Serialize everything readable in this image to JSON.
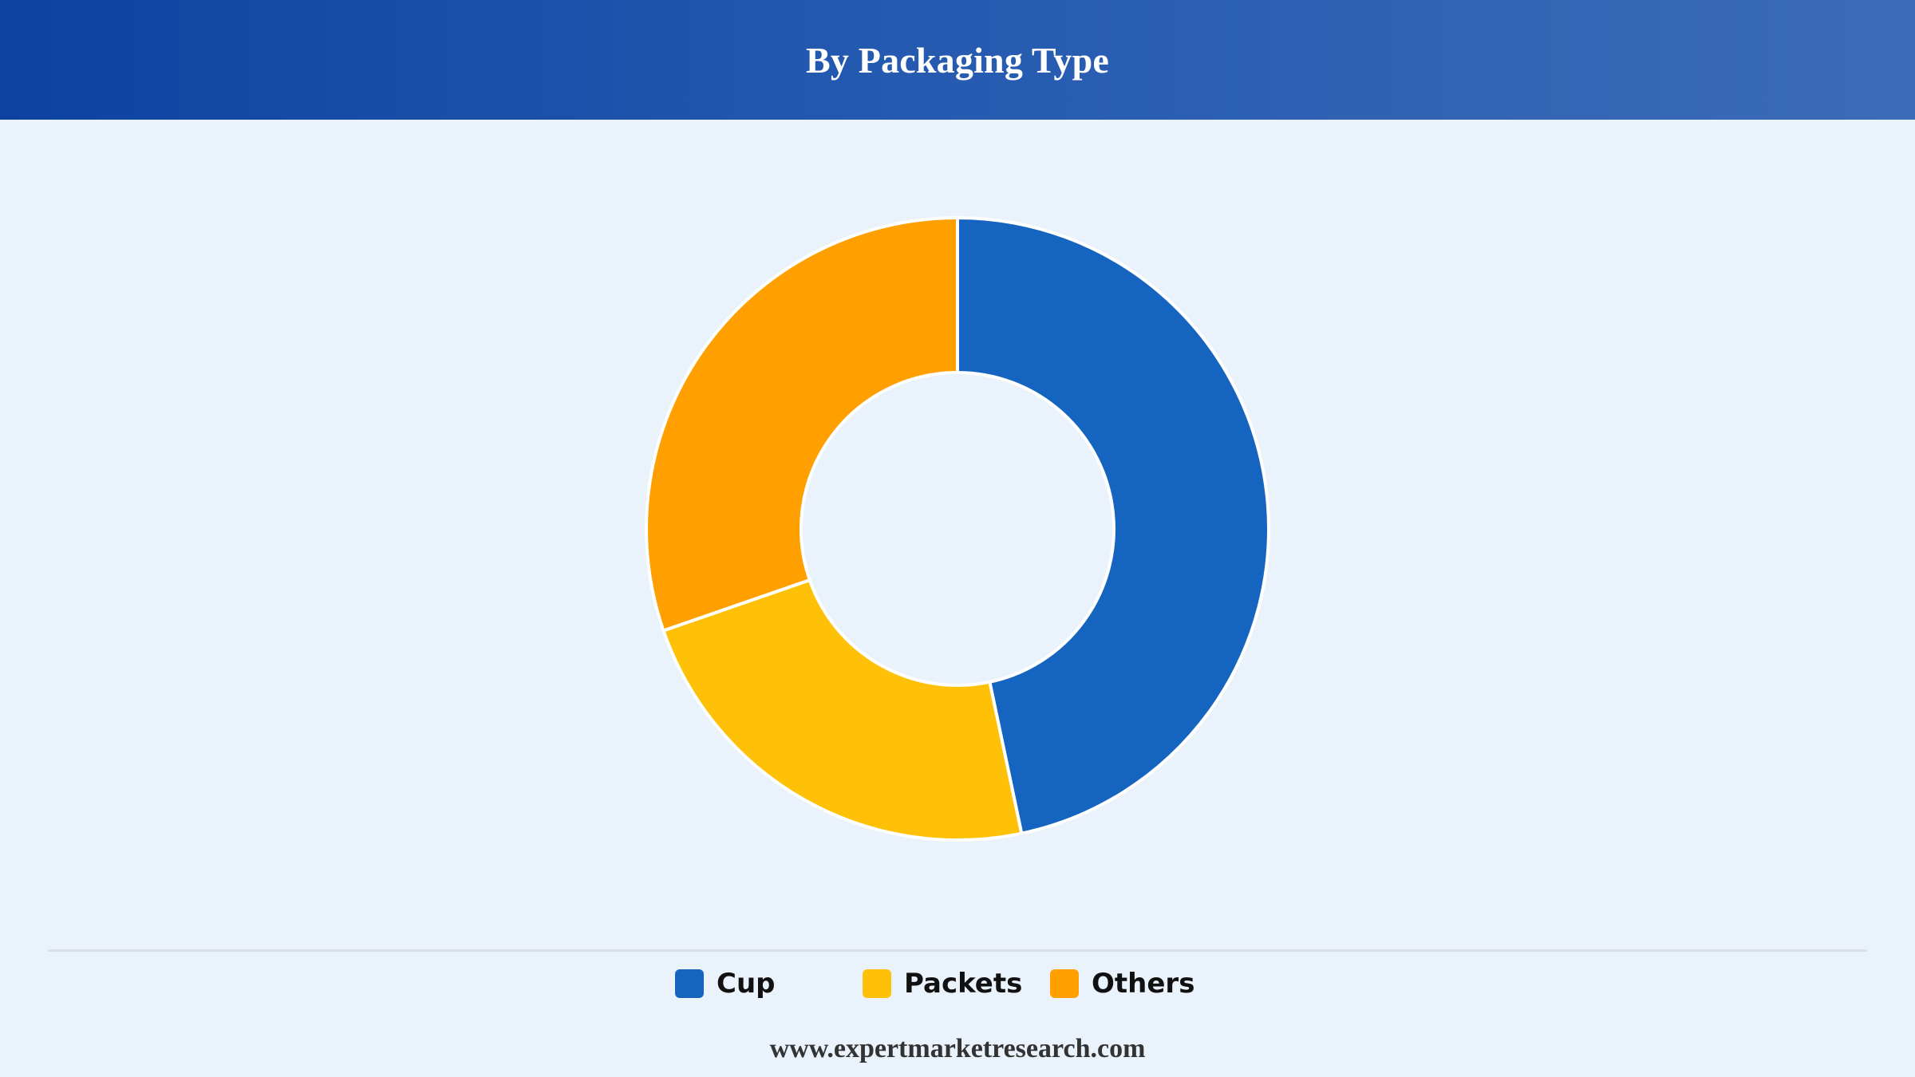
{
  "header": {
    "title": "By Packaging Type"
  },
  "chart_data": {
    "type": "pie",
    "variant": "donut",
    "title": "By Packaging Type",
    "categories": [
      "Cup",
      "Packets",
      "Others"
    ],
    "values": [
      46.7,
      23.0,
      30.3
    ],
    "colors": [
      "#1565C0",
      "#FFC107",
      "#FFA000"
    ],
    "start_angle_deg": 0,
    "direction": "clockwise",
    "legend_position": "bottom"
  },
  "legend": {
    "items": [
      {
        "label": "Cup",
        "color": "#1565C0"
      },
      {
        "label": "Packets",
        "color": "#FFC107"
      },
      {
        "label": "Others",
        "color": "#FFA000"
      }
    ]
  },
  "footer": {
    "website": "www.expertmarketresearch.com"
  }
}
